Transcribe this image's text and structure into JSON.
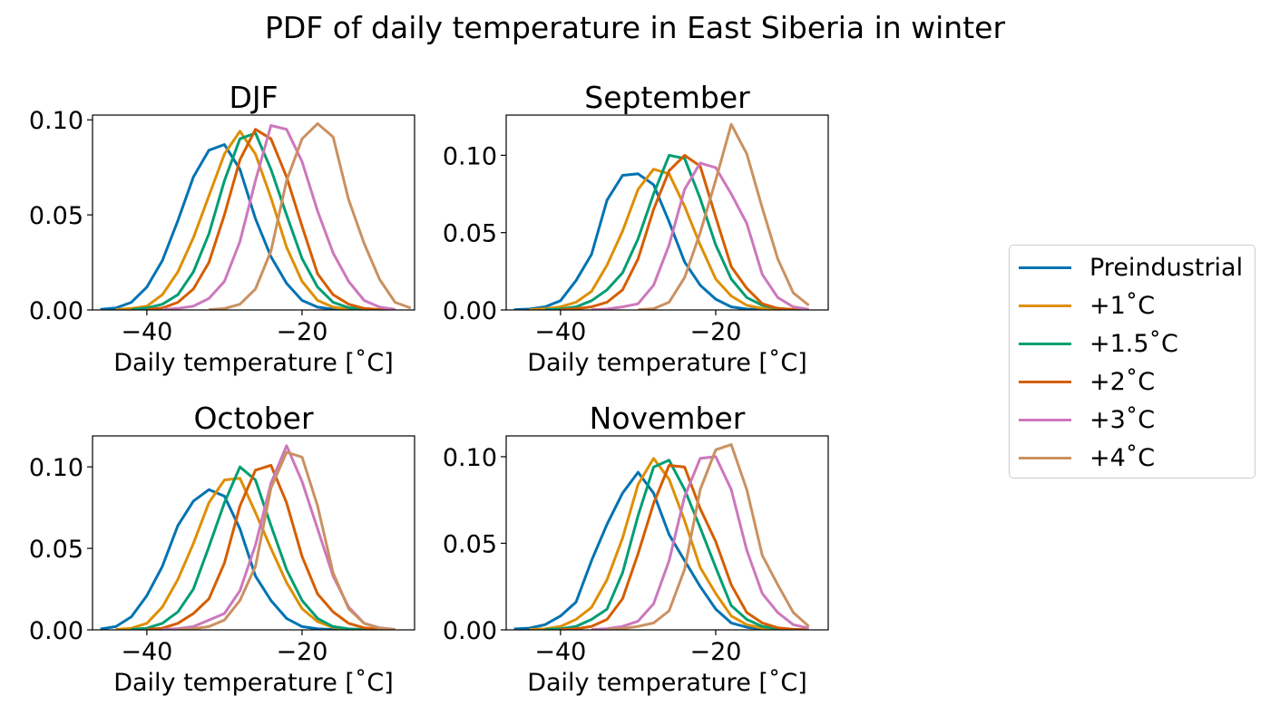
{
  "figure": {
    "suptitle": "PDF of daily temperature in East Siberia in winter"
  },
  "chart_data": [
    {
      "type": "line",
      "title": "DJF",
      "xlabel": "Daily temperature [˚C]",
      "ylabel": "",
      "xlim": [
        -47,
        -5.5
      ],
      "ylim": [
        0,
        0.1025
      ],
      "xticks": [
        -40,
        -20
      ],
      "xtick_labels": [
        "−40",
        "−20"
      ],
      "yticks": [
        0,
        0.05,
        0.1
      ],
      "ytick_labels": [
        "0.00",
        "0.05",
        "0.10"
      ],
      "series": [
        {
          "name": "Preindustrial",
          "x": [
            -46,
            -44,
            -42,
            -40,
            -38,
            -36,
            -34,
            -32,
            -30,
            -28,
            -26,
            -24,
            -22,
            -20,
            -18,
            -16,
            -14
          ],
          "values": [
            0.0003,
            0.001,
            0.004,
            0.012,
            0.026,
            0.047,
            0.07,
            0.084,
            0.087,
            0.074,
            0.048,
            0.028,
            0.014,
            0.005,
            0.0015,
            0.0004,
            0.0001
          ]
        },
        {
          "name": "+1˚C",
          "x": [
            -44,
            -42,
            -40,
            -38,
            -36,
            -34,
            -32,
            -30,
            -28,
            -26,
            -24,
            -22,
            -20,
            -18,
            -16,
            -14,
            -12
          ],
          "values": [
            0.0002,
            0.0008,
            0.002,
            0.008,
            0.02,
            0.038,
            0.06,
            0.082,
            0.094,
            0.082,
            0.059,
            0.033,
            0.015,
            0.005,
            0.0015,
            0.0004,
            0.0001
          ]
        },
        {
          "name": "+1.5˚C",
          "x": [
            -42,
            -40,
            -38,
            -36,
            -34,
            -32,
            -30,
            -28,
            -26,
            -24,
            -22,
            -20,
            -18,
            -16,
            -14,
            -12,
            -10
          ],
          "values": [
            0.0002,
            0.001,
            0.003,
            0.008,
            0.02,
            0.04,
            0.068,
            0.09,
            0.093,
            0.074,
            0.05,
            0.027,
            0.012,
            0.004,
            0.0012,
            0.0003,
            0.0001
          ]
        },
        {
          "name": "+2˚C",
          "x": [
            -40,
            -38,
            -36,
            -34,
            -32,
            -30,
            -28,
            -26,
            -24,
            -22,
            -20,
            -18,
            -16,
            -14,
            -12,
            -10,
            -8
          ],
          "values": [
            0.0002,
            0.001,
            0.004,
            0.011,
            0.025,
            0.05,
            0.079,
            0.095,
            0.09,
            0.07,
            0.044,
            0.019,
            0.008,
            0.003,
            0.0008,
            0.0002,
            0.0001
          ]
        },
        {
          "name": "+3˚C",
          "x": [
            -38,
            -36,
            -34,
            -32,
            -30,
            -28,
            -26,
            -24,
            -22,
            -20,
            -18,
            -16,
            -14,
            -12,
            -10,
            -8
          ],
          "values": [
            0.0002,
            0.0008,
            0.002,
            0.006,
            0.015,
            0.036,
            0.068,
            0.097,
            0.095,
            0.078,
            0.052,
            0.03,
            0.015,
            0.005,
            0.0015,
            0.0003
          ]
        },
        {
          "name": "+4˚C",
          "x": [
            -32,
            -30,
            -28,
            -26,
            -24,
            -22,
            -20,
            -18,
            -16,
            -14,
            -12,
            -10,
            -8,
            -6
          ],
          "values": [
            0.0002,
            0.0007,
            0.003,
            0.011,
            0.031,
            0.068,
            0.09,
            0.098,
            0.091,
            0.058,
            0.035,
            0.016,
            0.004,
            0.001
          ]
        }
      ]
    },
    {
      "type": "line",
      "title": "September",
      "xlabel": "Daily temperature [˚C]",
      "ylabel": "",
      "xlim": [
        -47,
        -5.5
      ],
      "ylim": [
        0,
        0.126
      ],
      "xticks": [
        -40,
        -20
      ],
      "xtick_labels": [
        "−40",
        "−20"
      ],
      "yticks": [
        0,
        0.05,
        0.1
      ],
      "ytick_labels": [
        "0.00",
        "0.05",
        "0.10"
      ],
      "series": [
        {
          "name": "Preindustrial",
          "x": [
            -46,
            -44,
            -42,
            -40,
            -38,
            -36,
            -34,
            -32,
            -30,
            -28,
            -26,
            -24,
            -22,
            -20,
            -18,
            -16,
            -14
          ],
          "values": [
            0.0002,
            0.0006,
            0.002,
            0.006,
            0.019,
            0.036,
            0.071,
            0.087,
            0.088,
            0.081,
            0.057,
            0.031,
            0.016,
            0.007,
            0.002,
            0.0006,
            0.0001
          ]
        },
        {
          "name": "+1˚C",
          "x": [
            -44,
            -42,
            -40,
            -38,
            -36,
            -34,
            -32,
            -30,
            -28,
            -26,
            -24,
            -22,
            -20,
            -18,
            -16,
            -14,
            -12
          ],
          "values": [
            0.0002,
            0.0008,
            0.002,
            0.005,
            0.012,
            0.029,
            0.051,
            0.078,
            0.091,
            0.088,
            0.067,
            0.042,
            0.02,
            0.009,
            0.003,
            0.001,
            0.0002
          ]
        },
        {
          "name": "+1.5˚C",
          "x": [
            -42,
            -40,
            -38,
            -36,
            -34,
            -32,
            -30,
            -28,
            -26,
            -24,
            -22,
            -20,
            -18,
            -16,
            -14,
            -12,
            -10
          ],
          "values": [
            0.0002,
            0.0006,
            0.002,
            0.006,
            0.013,
            0.024,
            0.046,
            0.075,
            0.1,
            0.098,
            0.072,
            0.042,
            0.02,
            0.008,
            0.003,
            0.001,
            0.0002
          ]
        },
        {
          "name": "+2˚C",
          "x": [
            -40,
            -38,
            -36,
            -34,
            -32,
            -30,
            -28,
            -26,
            -24,
            -22,
            -20,
            -18,
            -16,
            -14,
            -12,
            -10,
            -8
          ],
          "values": [
            0.0002,
            0.0008,
            0.002,
            0.005,
            0.013,
            0.033,
            0.065,
            0.09,
            0.1,
            0.093,
            0.06,
            0.028,
            0.014,
            0.004,
            0.001,
            0.0003,
            0.0001
          ]
        },
        {
          "name": "+3˚C",
          "x": [
            -36,
            -34,
            -32,
            -30,
            -28,
            -26,
            -24,
            -22,
            -20,
            -18,
            -16,
            -14,
            -12,
            -10,
            -8
          ],
          "values": [
            0.0002,
            0.0006,
            0.002,
            0.004,
            0.016,
            0.042,
            0.078,
            0.095,
            0.092,
            0.075,
            0.056,
            0.023,
            0.008,
            0.002,
            0.0004
          ]
        },
        {
          "name": "+4˚C",
          "x": [
            -30,
            -28,
            -26,
            -24,
            -22,
            -20,
            -18,
            -16,
            -14,
            -12,
            -10,
            -8
          ],
          "values": [
            0.0002,
            0.0008,
            0.005,
            0.021,
            0.05,
            0.084,
            0.12,
            0.101,
            0.066,
            0.033,
            0.011,
            0.003
          ]
        }
      ]
    },
    {
      "type": "line",
      "title": "October",
      "xlabel": "Daily temperature [˚C]",
      "ylabel": "",
      "xlim": [
        -47,
        -5.5
      ],
      "ylim": [
        0,
        0.119
      ],
      "xticks": [
        -40,
        -20
      ],
      "xtick_labels": [
        "−40",
        "−20"
      ],
      "yticks": [
        0,
        0.05,
        0.1
      ],
      "ytick_labels": [
        "0.00",
        "0.05",
        "0.10"
      ],
      "series": [
        {
          "name": "Preindustrial",
          "x": [
            -46,
            -44,
            -42,
            -40,
            -38,
            -36,
            -34,
            -32,
            -30,
            -28,
            -26,
            -24,
            -22,
            -20,
            -18,
            -16,
            -14
          ],
          "values": [
            0.0005,
            0.002,
            0.008,
            0.021,
            0.039,
            0.064,
            0.079,
            0.086,
            0.082,
            0.062,
            0.033,
            0.018,
            0.007,
            0.002,
            0.0006,
            0.0002,
            0.0001
          ]
        },
        {
          "name": "+1˚C",
          "x": [
            -44,
            -42,
            -40,
            -38,
            -36,
            -34,
            -32,
            -30,
            -28,
            -26,
            -24,
            -22,
            -20,
            -18,
            -16,
            -14,
            -12
          ],
          "values": [
            0.0003,
            0.001,
            0.004,
            0.014,
            0.031,
            0.053,
            0.078,
            0.092,
            0.093,
            0.072,
            0.05,
            0.029,
            0.013,
            0.005,
            0.0015,
            0.0004,
            0.0001
          ]
        },
        {
          "name": "+1.5˚C",
          "x": [
            -42,
            -40,
            -38,
            -36,
            -34,
            -32,
            -30,
            -28,
            -26,
            -24,
            -22,
            -20,
            -18,
            -16,
            -14,
            -12,
            -10
          ],
          "values": [
            0.0003,
            0.001,
            0.004,
            0.011,
            0.025,
            0.051,
            0.078,
            0.1,
            0.092,
            0.064,
            0.037,
            0.018,
            0.007,
            0.002,
            0.0006,
            0.0002,
            0.0001
          ]
        },
        {
          "name": "+2˚C",
          "x": [
            -40,
            -38,
            -36,
            -34,
            -32,
            -30,
            -28,
            -26,
            -24,
            -22,
            -20,
            -18,
            -16,
            -14,
            -12,
            -10,
            -8
          ],
          "values": [
            0.0003,
            0.001,
            0.004,
            0.01,
            0.019,
            0.041,
            0.076,
            0.098,
            0.101,
            0.078,
            0.045,
            0.022,
            0.011,
            0.004,
            0.0012,
            0.0003,
            0.0001
          ]
        },
        {
          "name": "+3˚C",
          "x": [
            -38,
            -36,
            -34,
            -32,
            -30,
            -28,
            -26,
            -24,
            -22,
            -20,
            -18,
            -16,
            -14,
            -12,
            -10,
            -8
          ],
          "values": [
            0.0002,
            0.0008,
            0.002,
            0.006,
            0.01,
            0.024,
            0.052,
            0.09,
            0.113,
            0.091,
            0.062,
            0.033,
            0.014,
            0.004,
            0.0012,
            0.0003
          ]
        },
        {
          "name": "+4˚C",
          "x": [
            -36,
            -34,
            -32,
            -30,
            -28,
            -26,
            -24,
            -22,
            -20,
            -18,
            -16,
            -14,
            -12,
            -10,
            -8
          ],
          "values": [
            0.0002,
            0.0007,
            0.002,
            0.006,
            0.018,
            0.039,
            0.087,
            0.109,
            0.106,
            0.076,
            0.035,
            0.013,
            0.004,
            0.001,
            0.0002
          ]
        }
      ]
    },
    {
      "type": "line",
      "title": "November",
      "xlabel": "Daily temperature [˚C]",
      "ylabel": "",
      "xlim": [
        -47,
        -5.5
      ],
      "ylim": [
        0,
        0.112
      ],
      "xticks": [
        -40,
        -20
      ],
      "xtick_labels": [
        "−40",
        "−20"
      ],
      "yticks": [
        0,
        0.05,
        0.1
      ],
      "ytick_labels": [
        "0.00",
        "0.05",
        "0.10"
      ],
      "series": [
        {
          "name": "Preindustrial",
          "x": [
            -46,
            -44,
            -42,
            -40,
            -38,
            -36,
            -34,
            -32,
            -30,
            -28,
            -26,
            -24,
            -22,
            -20,
            -18,
            -16,
            -14
          ],
          "values": [
            0.0005,
            0.001,
            0.003,
            0.008,
            0.016,
            0.04,
            0.061,
            0.079,
            0.091,
            0.079,
            0.055,
            0.04,
            0.025,
            0.012,
            0.004,
            0.0015,
            0.0005
          ]
        },
        {
          "name": "+1˚C",
          "x": [
            -44,
            -42,
            -40,
            -38,
            -36,
            -34,
            -32,
            -30,
            -28,
            -26,
            -24,
            -22,
            -20,
            -18,
            -16,
            -14,
            -12
          ],
          "values": [
            0.0002,
            0.0006,
            0.002,
            0.006,
            0.013,
            0.029,
            0.053,
            0.084,
            0.099,
            0.087,
            0.063,
            0.036,
            0.021,
            0.008,
            0.003,
            0.001,
            0.0003
          ]
        },
        {
          "name": "+1.5˚C",
          "x": [
            -42,
            -40,
            -38,
            -36,
            -34,
            -32,
            -30,
            -28,
            -26,
            -24,
            -22,
            -20,
            -18,
            -16,
            -14,
            -12,
            -10
          ],
          "values": [
            0.0002,
            0.0006,
            0.002,
            0.006,
            0.012,
            0.033,
            0.066,
            0.094,
            0.098,
            0.081,
            0.059,
            0.036,
            0.014,
            0.006,
            0.002,
            0.0006,
            0.0001
          ]
        },
        {
          "name": "+2˚C",
          "x": [
            -40,
            -38,
            -36,
            -34,
            -32,
            -30,
            -28,
            -26,
            -24,
            -22,
            -20,
            -18,
            -16,
            -14,
            -12,
            -10,
            -8
          ],
          "values": [
            0.0002,
            0.0006,
            0.002,
            0.006,
            0.018,
            0.044,
            0.073,
            0.095,
            0.094,
            0.07,
            0.051,
            0.026,
            0.01,
            0.004,
            0.0012,
            0.0003,
            0.0001
          ]
        },
        {
          "name": "+3˚C",
          "x": [
            -36,
            -34,
            -32,
            -30,
            -28,
            -26,
            -24,
            -22,
            -20,
            -18,
            -16,
            -14,
            -12,
            -10,
            -8
          ],
          "values": [
            0.0002,
            0.0007,
            0.002,
            0.005,
            0.015,
            0.04,
            0.077,
            0.099,
            0.1,
            0.081,
            0.046,
            0.021,
            0.01,
            0.003,
            0.001
          ]
        },
        {
          "name": "+4˚C",
          "x": [
            -34,
            -32,
            -30,
            -28,
            -26,
            -24,
            -22,
            -20,
            -18,
            -16,
            -14,
            -12,
            -10,
            -8
          ],
          "values": [
            0.0002,
            0.0008,
            0.002,
            0.004,
            0.011,
            0.035,
            0.081,
            0.104,
            0.107,
            0.081,
            0.043,
            0.026,
            0.01,
            0.002
          ]
        }
      ]
    }
  ],
  "legend": {
    "placement": "center-right",
    "items": [
      {
        "label": "Preindustrial",
        "color": "#0173b2"
      },
      {
        "label": "+1˚C",
        "color": "#de8f05"
      },
      {
        "label": "+1.5˚C",
        "color": "#029e73"
      },
      {
        "label": "+2˚C",
        "color": "#d55e00"
      },
      {
        "label": "+3˚C",
        "color": "#cc78bc"
      },
      {
        "label": "+4˚C",
        "color": "#ca9161"
      }
    ]
  }
}
